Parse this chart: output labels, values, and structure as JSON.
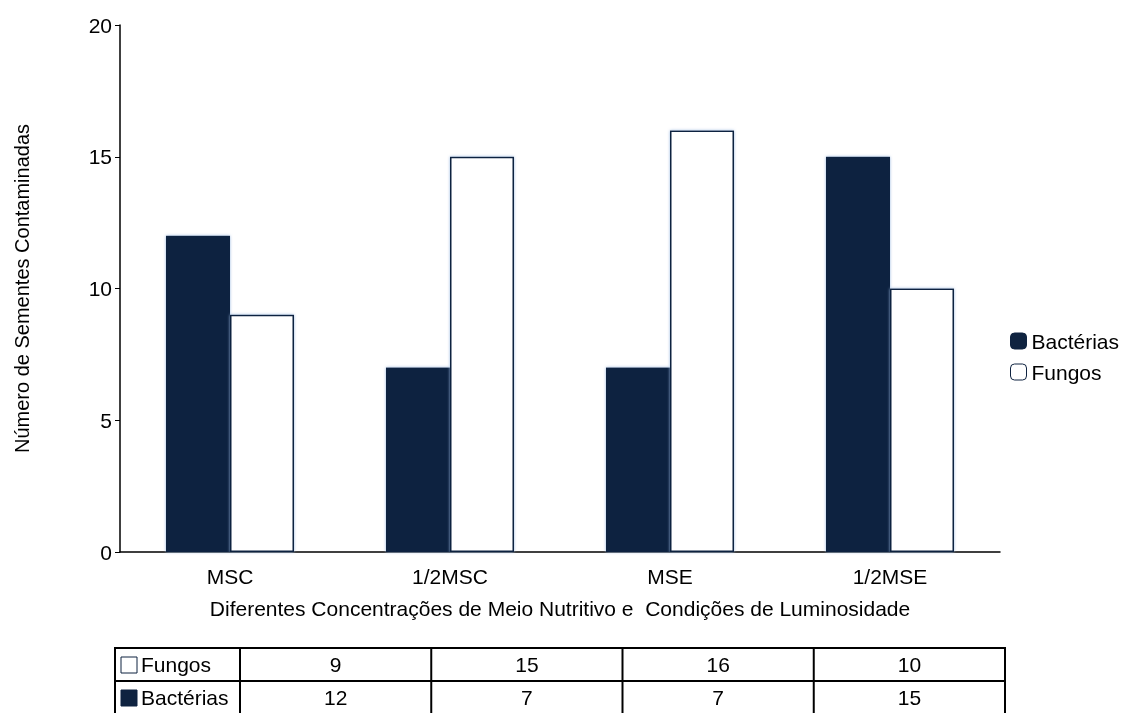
{
  "chart_data": {
    "type": "bar",
    "xlabel": "Diferentes Concentrações de Meio Nutritivo e  Condições de Luminosidade",
    "ylabel": "Número de Sementes Contaminadas",
    "categories": [
      "MSC",
      "1/2MSC",
      "MSE",
      "1/2MSE"
    ],
    "series": [
      {
        "name": "Bactérias",
        "color": "#0f2340",
        "values": [
          12,
          7,
          7,
          15
        ]
      },
      {
        "name": "Fungos",
        "color": "#ffffff",
        "values": [
          9,
          15,
          16,
          10
        ]
      }
    ],
    "ylim": [
      0,
      20
    ],
    "yticks": [
      0,
      5,
      10,
      15,
      20
    ],
    "grid": false,
    "legend": "right",
    "data_labels": true
  }
}
